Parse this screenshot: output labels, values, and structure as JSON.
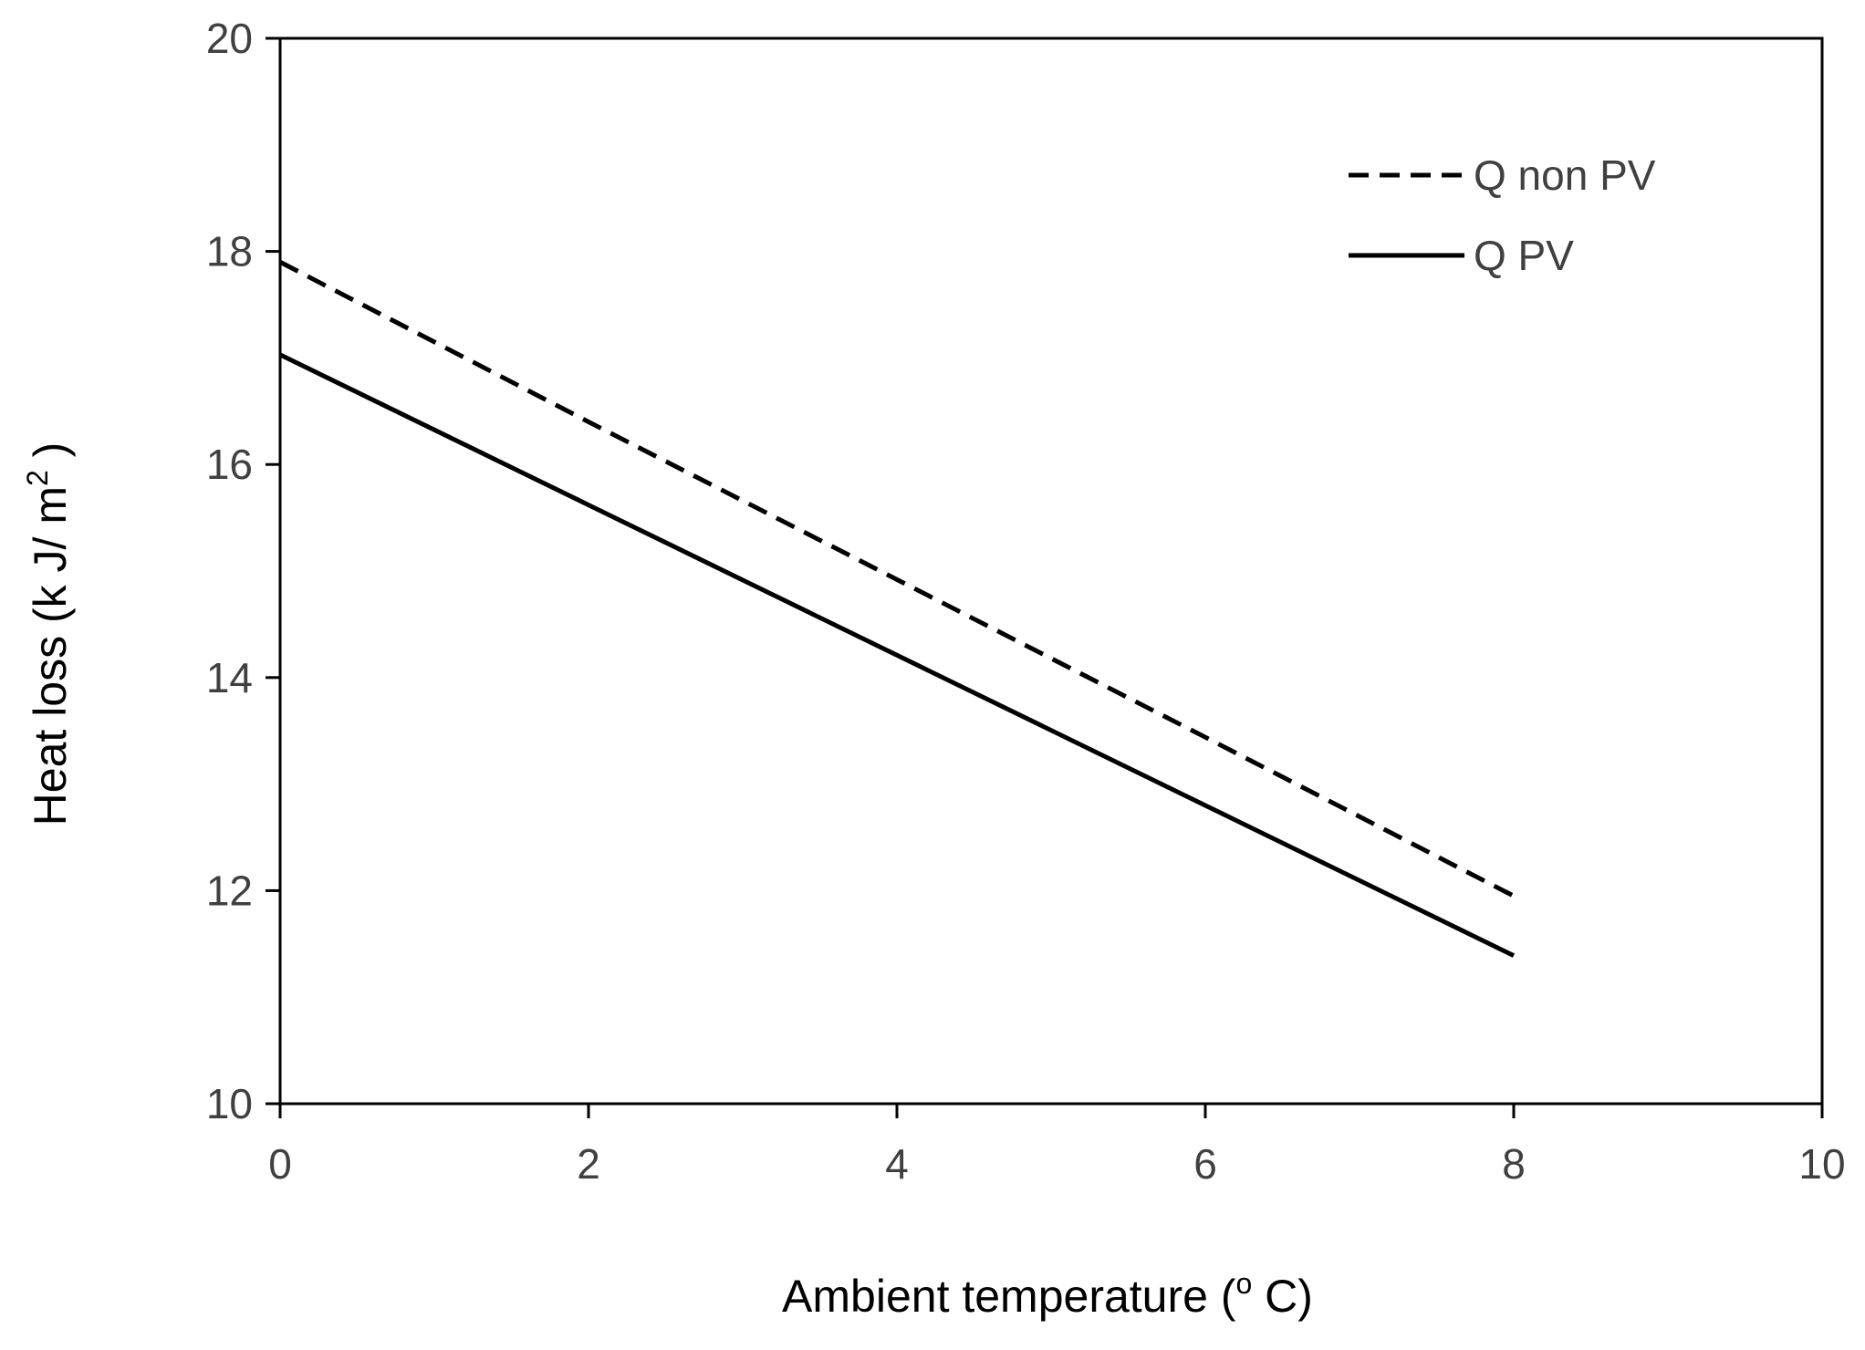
{
  "chart_data": {
    "type": "line",
    "title": "",
    "xlabel": {
      "main": "Ambient temperature (",
      "superscript": "o",
      "tail": " C)"
    },
    "ylabel": {
      "main": "Heat loss  (k J/ m",
      "superscript": "2",
      "tail": " )"
    },
    "xlim": [
      0,
      10
    ],
    "ylim": [
      10,
      20
    ],
    "xticks": [
      0,
      2,
      4,
      6,
      8,
      10
    ],
    "xtick_labels": [
      "0",
      "2",
      "4",
      "6",
      "8",
      "10"
    ],
    "yticks": [
      10,
      12,
      14,
      16,
      18,
      20
    ],
    "ytick_labels": [
      "10",
      "12",
      "14",
      "16",
      "18",
      "20"
    ],
    "grid": false,
    "legend_position": "top-right",
    "series": [
      {
        "name": "Q non PV",
        "style": "dashed",
        "color": "#000000",
        "x": [
          0,
          2,
          4,
          6,
          8
        ],
        "y": [
          17.9,
          16.4,
          14.92,
          13.44,
          11.95
        ]
      },
      {
        "name": "Q PV",
        "style": "solid",
        "color": "#000000",
        "x": [
          0,
          2,
          4,
          6,
          8
        ],
        "y": [
          17.03,
          15.62,
          14.21,
          12.8,
          11.39
        ]
      }
    ]
  }
}
